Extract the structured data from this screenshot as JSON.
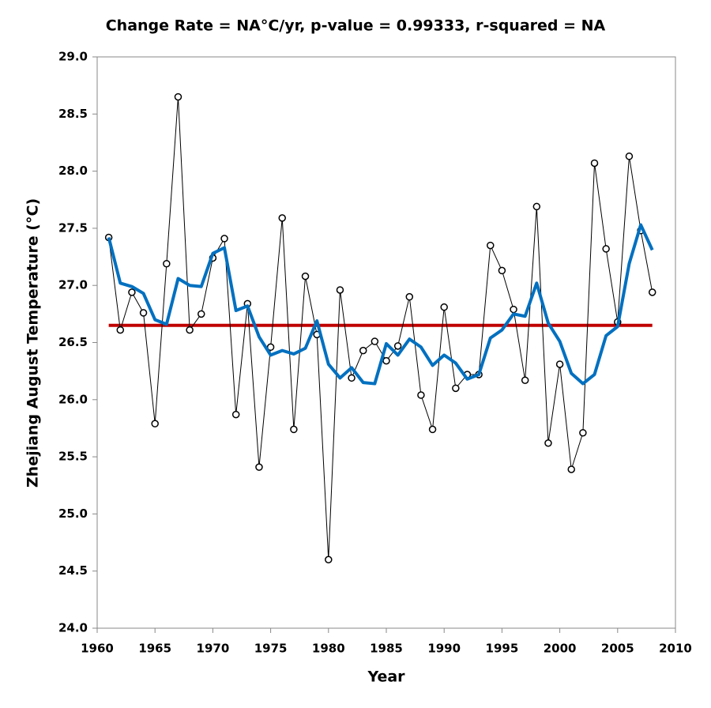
{
  "chart_data": {
    "type": "line",
    "title": "Change Rate =  NA°C/yr,  p-value =  0.99333,  r-squared =  NA",
    "x_label": "Year",
    "y_label": "Zhejiang August Temperature (°C)",
    "x": [
      1961,
      1962,
      1963,
      1964,
      1965,
      1966,
      1967,
      1968,
      1969,
      1970,
      1971,
      1972,
      1973,
      1974,
      1975,
      1976,
      1977,
      1978,
      1979,
      1980,
      1981,
      1982,
      1983,
      1984,
      1985,
      1986,
      1987,
      1988,
      1989,
      1990,
      1991,
      1992,
      1993,
      1994,
      1995,
      1996,
      1997,
      1998,
      1999,
      2000,
      2001,
      2002,
      2003,
      2004,
      2005,
      2006,
      2007,
      2008
    ],
    "series": [
      {
        "color": "#000000",
        "marker": true,
        "values": [
          27.42,
          26.61,
          26.94,
          26.76,
          25.79,
          27.19,
          28.65,
          26.61,
          26.75,
          27.24,
          27.41,
          25.87,
          26.84,
          25.41,
          26.46,
          27.59,
          25.74,
          27.08,
          26.57,
          24.6,
          26.96,
          26.19,
          26.43,
          26.51,
          26.34,
          26.47,
          26.9,
          26.04,
          25.74,
          26.81,
          26.1,
          26.22,
          26.22,
          27.35,
          27.13,
          26.79,
          26.17,
          27.69,
          25.62,
          26.31,
          25.39,
          25.71,
          28.07,
          27.32,
          26.68,
          28.13,
          27.48,
          26.94
        ]
      },
      {
        "color": "#0070c0",
        "marker": false,
        "values": [
          27.42,
          27.02,
          26.99,
          26.93,
          26.7,
          26.66,
          27.06,
          27.0,
          26.99,
          27.28,
          27.33,
          26.78,
          26.82,
          26.55,
          26.39,
          26.43,
          26.4,
          26.45,
          26.69,
          26.31,
          26.19,
          26.28,
          26.15,
          26.14,
          26.49,
          26.39,
          26.53,
          26.46,
          26.3,
          26.39,
          26.32,
          26.18,
          26.22,
          26.54,
          26.61,
          26.75,
          26.73,
          27.02,
          26.67,
          26.51,
          26.23,
          26.14,
          26.22,
          26.56,
          26.64,
          27.19,
          27.53,
          27.31
        ]
      },
      {
        "color": "#c00000",
        "marker": false,
        "values": [
          26.65,
          26.65,
          26.65,
          26.65,
          26.65,
          26.65,
          26.65,
          26.65,
          26.65,
          26.65,
          26.65,
          26.65,
          26.65,
          26.65,
          26.65,
          26.65,
          26.65,
          26.65,
          26.65,
          26.65,
          26.65,
          26.65,
          26.65,
          26.65,
          26.65,
          26.65,
          26.65,
          26.65,
          26.65,
          26.65,
          26.65,
          26.65,
          26.65,
          26.65,
          26.65,
          26.65,
          26.65,
          26.65,
          26.65,
          26.65,
          26.65,
          26.65,
          26.65,
          26.65,
          26.65,
          26.65,
          26.65,
          26.65
        ]
      }
    ],
    "xlim": [
      1960,
      2010
    ],
    "xticks": [
      1960,
      1965,
      1970,
      1975,
      1980,
      1985,
      1990,
      1995,
      2000,
      2005,
      2010
    ],
    "ylim": [
      24,
      29
    ],
    "yticks": [
      {
        "value": 24,
        "label": "24.0"
      },
      {
        "value": 24.5,
        "label": "24.5"
      },
      {
        "value": 25,
        "label": "25.0"
      },
      {
        "value": 25.5,
        "label": "25.5"
      },
      {
        "value": 26,
        "label": "26.0"
      },
      {
        "value": 26.5,
        "label": "26.5"
      },
      {
        "value": 27,
        "label": "27.0"
      },
      {
        "value": 27.5,
        "label": "27.5"
      },
      {
        "value": 28,
        "label": "28.0"
      },
      {
        "value": 28.5,
        "label": "28.5"
      },
      {
        "value": 29,
        "label": "29.0"
      }
    ]
  }
}
